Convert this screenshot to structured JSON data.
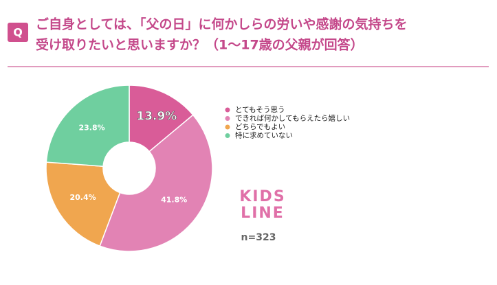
{
  "chart_data": {
    "type": "pie",
    "badge": "Q",
    "title": [
      "ご自身としては、「父の日」に何かしらの労いや感謝の気持ちを",
      "受け取りたいと思いますか？（1〜17歳の父親が回答）"
    ],
    "categories": [
      "とてもそう思う",
      "できれば何かしてもらえたら嬉しい",
      "どちらでもよい",
      "特に求めていない"
    ],
    "values": [
      13.9,
      41.8,
      20.4,
      23.8
    ],
    "value_labels": [
      "13.9%",
      "41.8%",
      "20.4%",
      "23.8%"
    ],
    "colors": [
      "#d95c98",
      "#e283b4",
      "#f0a64f",
      "#6fcf9f"
    ],
    "logo": [
      "KIDS",
      "LINE"
    ],
    "note": "n=323"
  }
}
